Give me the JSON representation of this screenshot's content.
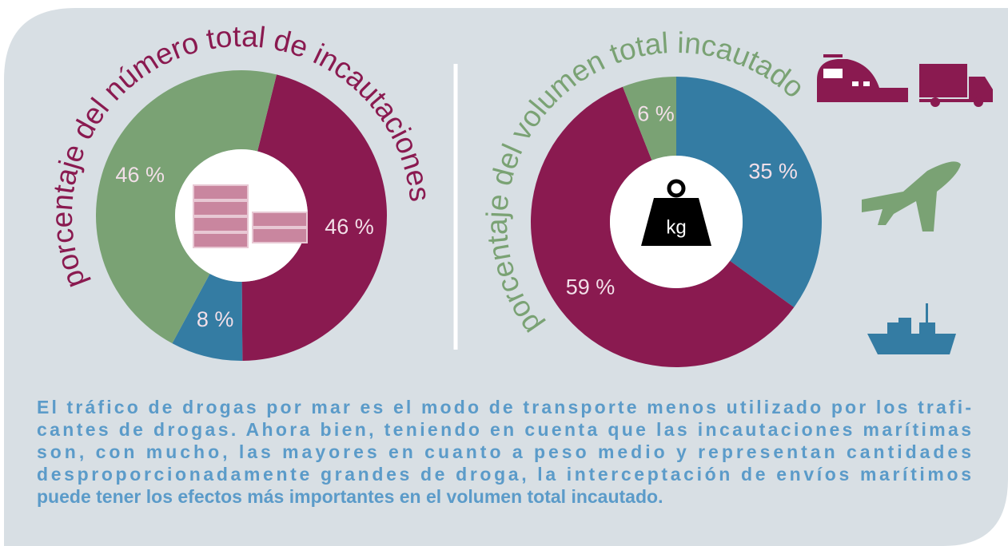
{
  "chart_data": [
    {
      "type": "donut",
      "title": "porcentaje del número total de incautaciones",
      "title_color": "#8a1a50",
      "values": [
        46,
        8,
        46
      ],
      "value_labels": [
        "46 %",
        "8 %",
        "46 %"
      ],
      "colors": [
        "#8a1a50",
        "#347ca3",
        "#7aa274"
      ]
    },
    {
      "type": "donut",
      "title": "porcentaje del volumen total incautado",
      "title_color": "#7aa274",
      "values": [
        35,
        59,
        6
      ],
      "value_labels": [
        "35 %",
        "59 %",
        "6 %"
      ],
      "colors": [
        "#347ca3",
        "#8a1a50",
        "#7aa274"
      ],
      "center_icon_label": "kg"
    }
  ],
  "caption_lines": [
    "El tráfico de drogas por mar es el modo de transporte menos utilizado por los trafi-",
    "cantes de drogas. Ahora bien, teniendo en cuenta que las incautaciones marítimas",
    "son, con mucho, las mayores en cuanto a peso medio y representan cantidades",
    "desproporcionadamente grandes de droga, la interceptación de envíos marítimos",
    "puede tener los efectos más importantes en el volumen total incautado."
  ]
}
